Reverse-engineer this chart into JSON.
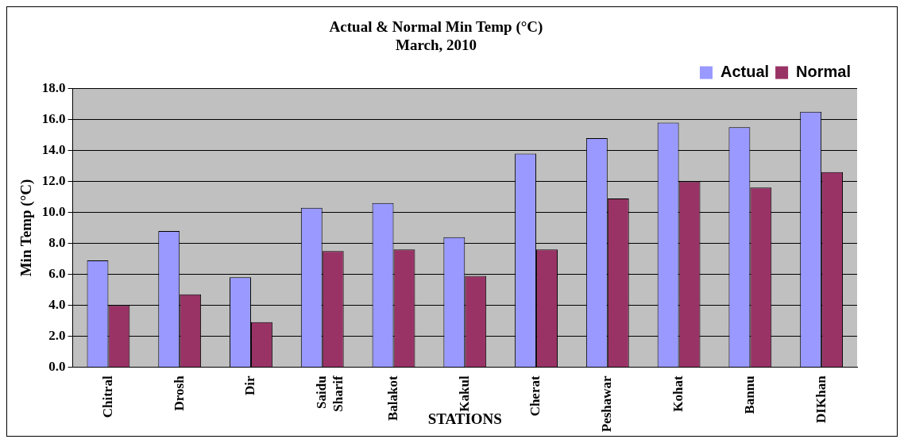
{
  "chart_data": {
    "type": "bar",
    "title": "Actual & Normal Min Temp (°C)",
    "subtitle": "March, 2010",
    "xlabel": "STATIONS",
    "ylabel": "Min Temp (°C)",
    "categories": [
      "Chitral",
      "Drosh",
      "Dir",
      "Saidu Sharif",
      "Balakot",
      "Kakul",
      "Cherat",
      "Peshawar",
      "Kohat",
      "Bannu",
      "DIKhan"
    ],
    "series": [
      {
        "name": "Actual",
        "color": "#9999ff",
        "values": [
          6.9,
          8.8,
          5.8,
          10.3,
          10.6,
          8.4,
          13.8,
          14.8,
          15.8,
          15.5,
          16.5
        ]
      },
      {
        "name": "Normal",
        "color": "#993366",
        "values": [
          4.0,
          4.7,
          2.9,
          7.5,
          7.6,
          5.9,
          7.6,
          10.9,
          12.0,
          11.6,
          12.6
        ]
      }
    ],
    "ylim": [
      0,
      18
    ],
    "yticks": [
      {
        "value": 0,
        "label": "0.0"
      },
      {
        "value": 2,
        "label": "2.0"
      },
      {
        "value": 4,
        "label": "4.0"
      },
      {
        "value": 6,
        "label": "6.0"
      },
      {
        "value": 8,
        "label": "8.0"
      },
      {
        "value": 10,
        "label": "10.0"
      },
      {
        "value": 12,
        "label": "12.0"
      },
      {
        "value": 14,
        "label": "14.0"
      },
      {
        "value": 16,
        "label": "16.0"
      },
      {
        "value": 18,
        "label": "18.0"
      }
    ],
    "grid": "y",
    "legend": "top right"
  }
}
